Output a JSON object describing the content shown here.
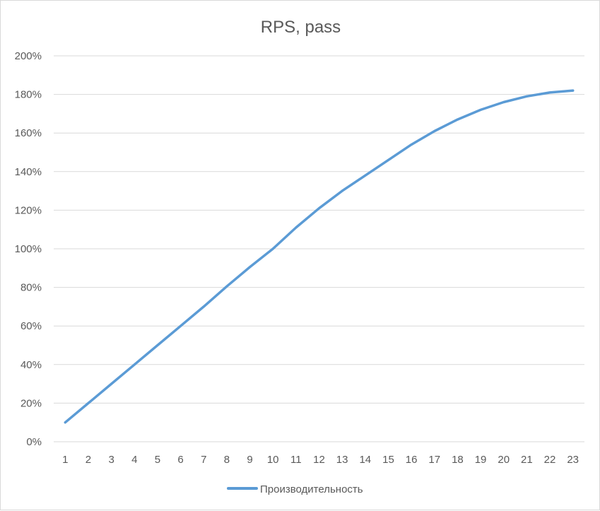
{
  "chart_data": {
    "type": "line",
    "title": "RPS, pass",
    "xlabel": "",
    "ylabel": "",
    "categories": [
      "1",
      "2",
      "3",
      "4",
      "5",
      "6",
      "7",
      "8",
      "9",
      "10",
      "11",
      "12",
      "13",
      "14",
      "15",
      "16",
      "17",
      "18",
      "19",
      "20",
      "21",
      "22",
      "23"
    ],
    "yticks": [
      "0%",
      "20%",
      "40%",
      "60%",
      "80%",
      "100%",
      "120%",
      "140%",
      "160%",
      "180%",
      "200%"
    ],
    "ylim": [
      0,
      200
    ],
    "grid": true,
    "legend_position": "bottom",
    "series": [
      {
        "name": "Производительность",
        "color": "#5b9bd5",
        "values": [
          10,
          20,
          30,
          40,
          50,
          60,
          70,
          80.5,
          90.5,
          100,
          111,
          121,
          130,
          138,
          146,
          154,
          161,
          167,
          172,
          176,
          179,
          181,
          182
        ]
      }
    ]
  }
}
